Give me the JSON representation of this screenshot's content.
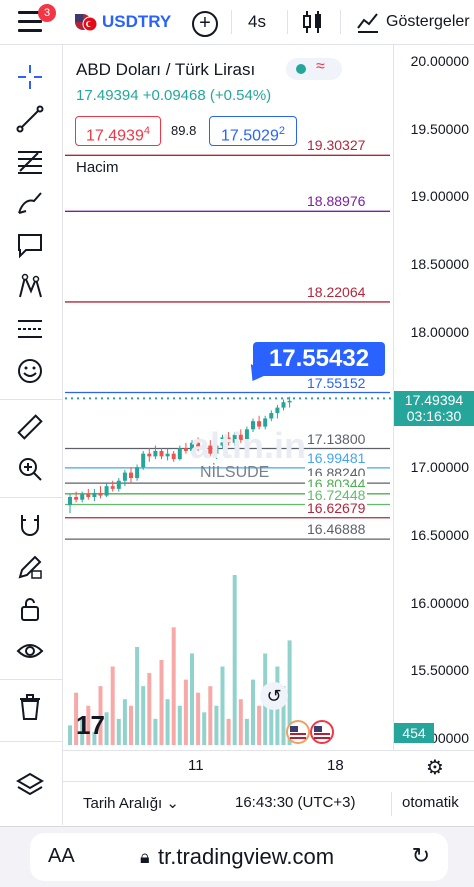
{
  "header": {
    "badge": "3",
    "symbol": "USDTRY",
    "interval": "4s",
    "indicators_label": "Göstergeler"
  },
  "legend": {
    "title": "ABD Doları / Türk Lirası",
    "price_change": "17.49394 +0.09468 (+0.54%)",
    "sell_price_main": "17.4939",
    "sell_price_small": "4",
    "spread": "89.8",
    "buy_price_main": "17.5029",
    "buy_price_small": "2",
    "volume_label": "Hacim"
  },
  "price_axis": {
    "ticks": [
      "20.00000",
      "19.50000",
      "19.00000",
      "18.50000",
      "18.00000",
      "17.50000",
      "17.00000",
      "16.50000",
      "16.00000",
      "15.50000",
      "15.00000"
    ],
    "current_price": "17.49394",
    "countdown": "03:16:30",
    "volume_value": "454"
  },
  "levels": [
    {
      "label": "19.30327",
      "color": "#b2263a"
    },
    {
      "label": "18.88976",
      "color": "#7b1fa2"
    },
    {
      "label": "18.22064",
      "color": "#b2263a"
    },
    {
      "label": "17.55152",
      "color": "#2962ff"
    },
    {
      "label": "17.13800",
      "color": "#5d606b"
    },
    {
      "label": "16.99481",
      "color": "#42a5f5"
    },
    {
      "label": "16.88240",
      "color": "#5d606b"
    },
    {
      "label": "16.80344",
      "color": "#4caf50"
    },
    {
      "label": "16.72448",
      "color": "#66bb6a"
    },
    {
      "label": "16.62679",
      "color": "#b2263a"
    },
    {
      "label": "16.46888",
      "color": "#5d606b"
    }
  ],
  "price_tag": "17.55432",
  "watermark": "altin.in",
  "overlay_text": "NİLSUDE",
  "tv_logo": "17",
  "time_axis": {
    "labels": [
      "11",
      "18"
    ]
  },
  "bottom_bar": {
    "date_range": "Tarih Aralığı",
    "time": "16:43:30 (UTC+3)",
    "scale": "otomatik"
  },
  "browser": {
    "text_size": "AA",
    "url": "tr.tradingview.com"
  },
  "chart_data": {
    "type": "candlestick",
    "title": "ABD Doları / Türk Lirası",
    "ylim": [
      15.0,
      20.0
    ],
    "candles": [
      {
        "o": 16.72,
        "h": 16.8,
        "l": 16.66,
        "c": 16.78
      },
      {
        "o": 16.78,
        "h": 16.82,
        "l": 16.74,
        "c": 16.76
      },
      {
        "o": 16.76,
        "h": 16.82,
        "l": 16.74,
        "c": 16.8
      },
      {
        "o": 16.8,
        "h": 16.84,
        "l": 16.76,
        "c": 16.78
      },
      {
        "o": 16.78,
        "h": 16.84,
        "l": 16.75,
        "c": 16.81
      },
      {
        "o": 16.81,
        "h": 16.86,
        "l": 16.77,
        "c": 16.79
      },
      {
        "o": 16.79,
        "h": 16.88,
        "l": 16.78,
        "c": 16.86
      },
      {
        "o": 16.86,
        "h": 16.9,
        "l": 16.82,
        "c": 16.84
      },
      {
        "o": 16.84,
        "h": 16.92,
        "l": 16.82,
        "c": 16.9
      },
      {
        "o": 16.9,
        "h": 16.98,
        "l": 16.86,
        "c": 16.96
      },
      {
        "o": 16.96,
        "h": 17.0,
        "l": 16.88,
        "c": 16.92
      },
      {
        "o": 16.92,
        "h": 17.02,
        "l": 16.9,
        "c": 17.0
      },
      {
        "o": 17.0,
        "h": 17.12,
        "l": 16.98,
        "c": 17.1
      },
      {
        "o": 17.1,
        "h": 17.14,
        "l": 17.04,
        "c": 17.08
      },
      {
        "o": 17.08,
        "h": 17.16,
        "l": 17.06,
        "c": 17.12
      },
      {
        "o": 17.12,
        "h": 17.14,
        "l": 17.06,
        "c": 17.08
      },
      {
        "o": 17.08,
        "h": 17.14,
        "l": 17.05,
        "c": 17.1
      },
      {
        "o": 17.1,
        "h": 17.12,
        "l": 17.04,
        "c": 17.06
      },
      {
        "o": 17.06,
        "h": 17.16,
        "l": 17.05,
        "c": 17.14
      },
      {
        "o": 17.14,
        "h": 17.18,
        "l": 17.1,
        "c": 17.12
      },
      {
        "o": 17.12,
        "h": 17.2,
        "l": 17.1,
        "c": 17.18
      },
      {
        "o": 17.18,
        "h": 17.22,
        "l": 17.12,
        "c": 17.14
      },
      {
        "o": 17.14,
        "h": 17.2,
        "l": 17.1,
        "c": 17.16
      },
      {
        "o": 17.16,
        "h": 17.2,
        "l": 17.08,
        "c": 17.1
      },
      {
        "o": 17.1,
        "h": 17.18,
        "l": 17.06,
        "c": 17.16
      },
      {
        "o": 17.16,
        "h": 17.24,
        "l": 17.14,
        "c": 17.22
      },
      {
        "o": 17.22,
        "h": 17.26,
        "l": 17.16,
        "c": 17.18
      },
      {
        "o": 17.18,
        "h": 17.26,
        "l": 17.16,
        "c": 17.24
      },
      {
        "o": 17.24,
        "h": 17.28,
        "l": 17.18,
        "c": 17.2
      },
      {
        "o": 17.2,
        "h": 17.3,
        "l": 17.18,
        "c": 17.28
      },
      {
        "o": 17.28,
        "h": 17.36,
        "l": 17.26,
        "c": 17.34
      },
      {
        "o": 17.34,
        "h": 17.38,
        "l": 17.28,
        "c": 17.3
      },
      {
        "o": 17.3,
        "h": 17.38,
        "l": 17.28,
        "c": 17.36
      },
      {
        "o": 17.36,
        "h": 17.42,
        "l": 17.34,
        "c": 17.4
      },
      {
        "o": 17.4,
        "h": 17.46,
        "l": 17.36,
        "c": 17.44
      },
      {
        "o": 17.44,
        "h": 17.5,
        "l": 17.42,
        "c": 17.48
      },
      {
        "o": 17.48,
        "h": 17.52,
        "l": 17.44,
        "c": 17.49
      }
    ],
    "volumes": [
      30,
      80,
      40,
      60,
      20,
      90,
      50,
      120,
      40,
      70,
      60,
      150,
      90,
      110,
      40,
      130,
      70,
      180,
      60,
      100,
      140,
      80,
      50,
      90,
      60,
      120,
      40,
      260,
      70,
      40,
      100,
      60,
      140,
      80,
      120,
      90,
      160
    ]
  }
}
